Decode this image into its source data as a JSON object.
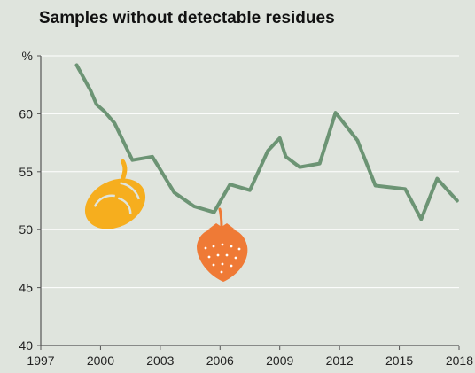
{
  "chart_data": {
    "type": "line",
    "title": "Samples without detectable residues",
    "ylabel": "%",
    "xlabel": "",
    "xlim": [
      1997,
      2018
    ],
    "ylim": [
      40,
      65
    ],
    "x_ticks": [
      "1997",
      "2000",
      "2003",
      "2006",
      "2009",
      "2012",
      "2015",
      "2018"
    ],
    "y_ticks": [
      "40",
      "45",
      "50",
      "55",
      "60",
      "%"
    ],
    "grid": true,
    "colors": {
      "line": "#6c9474",
      "background": "#dfe4dd",
      "grid": "#ffffff",
      "pepper": "#f6ae1e",
      "strawberry": "#ef7a36"
    },
    "series": [
      {
        "name": "",
        "x": [
          1998.8,
          1999.5,
          1999.8,
          2000.2,
          2000.7,
          2001.6,
          2002.6,
          2003.7,
          2004.7,
          2005.7,
          2006.5,
          2007.5,
          2008.4,
          2009.0,
          2009.3,
          2010.0,
          2011.0,
          2011.8,
          2012.9,
          2013.8,
          2015.3,
          2016.1,
          2016.9,
          2017.9
        ],
        "y": [
          64.2,
          62.0,
          60.8,
          60.2,
          59.2,
          56.0,
          56.3,
          53.2,
          52.0,
          51.5,
          53.9,
          53.4,
          56.8,
          57.9,
          56.3,
          55.4,
          55.7,
          60.1,
          57.7,
          53.8,
          53.5,
          50.9,
          54.4,
          52.5
        ]
      }
    ],
    "illustrations": [
      "pepper-icon",
      "strawberry-icon"
    ]
  }
}
